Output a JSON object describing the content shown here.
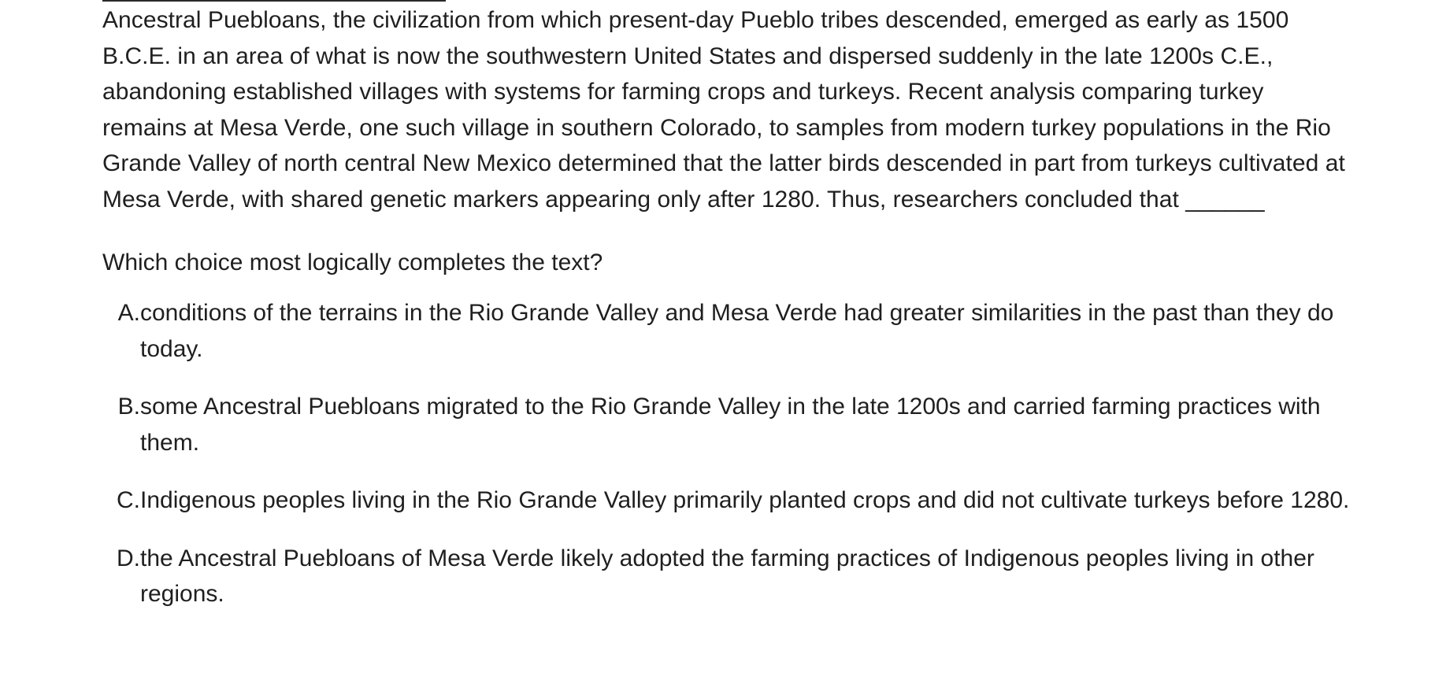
{
  "passage": {
    "text": "Ancestral Puebloans, the civilization from which present-day Pueblo tribes descended, emerged as early as 1500 B.C.E. in an area of what is now the southwestern United States and dispersed suddenly in the late 1200s C.E., abandoning established villages with systems for farming crops and turkeys. Recent analysis comparing turkey remains at Mesa Verde, one such village in southern Colorado, to samples from modern turkey populations in the Rio Grande Valley of north central New Mexico determined that the latter birds descended in part from turkeys cultivated at Mesa Verde, with shared genetic markers appearing only after 1280. Thus, researchers concluded that ______"
  },
  "question": {
    "prompt": "Which choice most logically completes the text?"
  },
  "choices": [
    {
      "letter": "A.",
      "text": "conditions of the terrains in the Rio Grande Valley and Mesa Verde had greater similarities in the past than they do today."
    },
    {
      "letter": "B.",
      "text": "some Ancestral Puebloans migrated to the Rio Grande Valley in the late 1200s and carried farming practices with them."
    },
    {
      "letter": "C.",
      "text": "Indigenous peoples living in the Rio Grande Valley primarily planted crops and did not cultivate turkeys before 1280."
    },
    {
      "letter": "D.",
      "text": "the Ancestral Puebloans of Mesa Verde likely adopted the farming practices of Indigenous peoples living in other regions."
    }
  ]
}
